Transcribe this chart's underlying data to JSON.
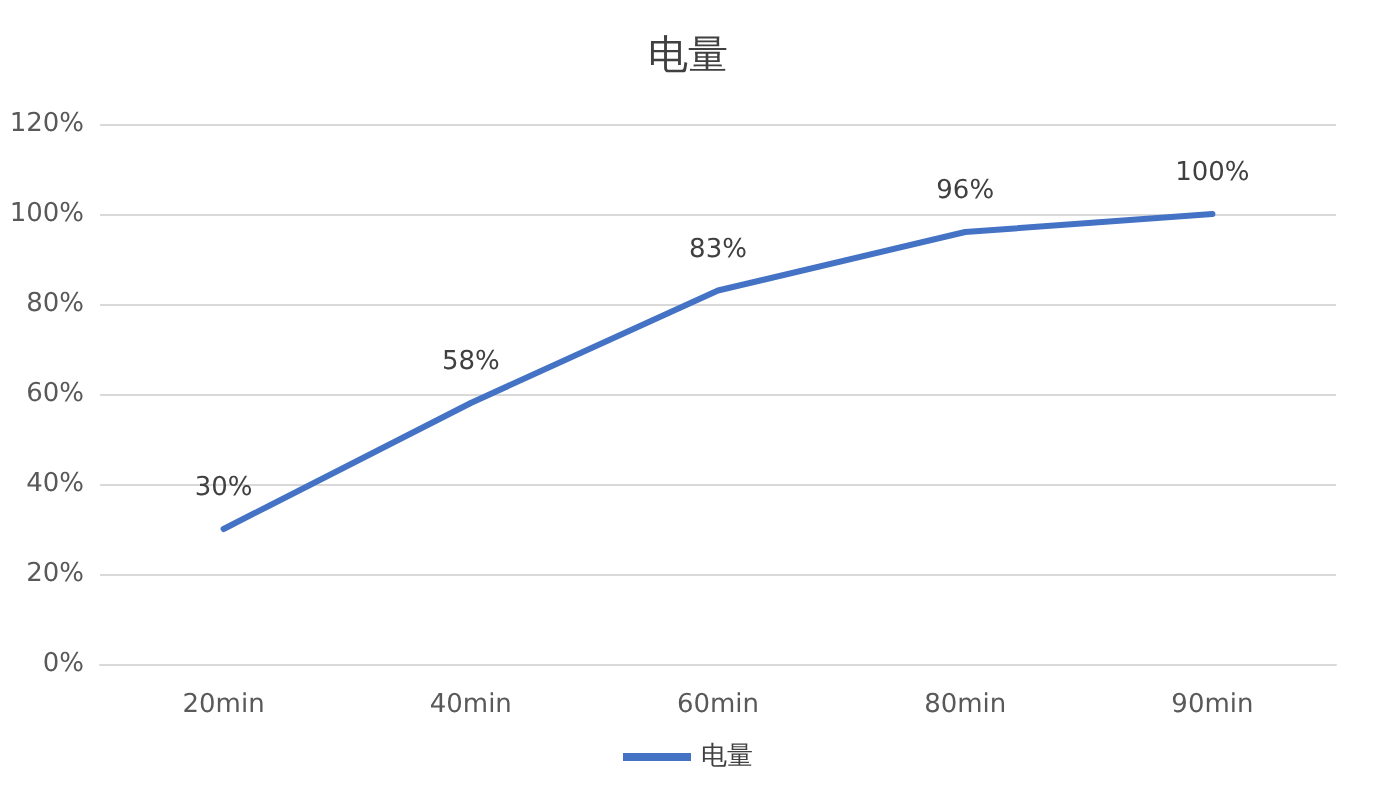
{
  "chart_data": {
    "type": "line",
    "title": "电量",
    "categories": [
      "20min",
      "40min",
      "60min",
      "80min",
      "90min"
    ],
    "series": [
      {
        "name": "电量",
        "color": "#4472c4",
        "values": [
          30,
          58,
          83,
          96,
          100
        ],
        "value_labels": [
          "30%",
          "58%",
          "83%",
          "96%",
          "100%"
        ]
      }
    ],
    "ylim": [
      0,
      120
    ],
    "yticks": [
      {
        "value": 0,
        "label": "0%"
      },
      {
        "value": 20,
        "label": "20%"
      },
      {
        "value": 40,
        "label": "40%"
      },
      {
        "value": 60,
        "label": "60%"
      },
      {
        "value": 80,
        "label": "80%"
      },
      {
        "value": 100,
        "label": "100%"
      },
      {
        "value": 120,
        "label": "120%"
      }
    ],
    "grid": "y",
    "legend": "bottom",
    "marker": "none",
    "line_style": "solid"
  }
}
